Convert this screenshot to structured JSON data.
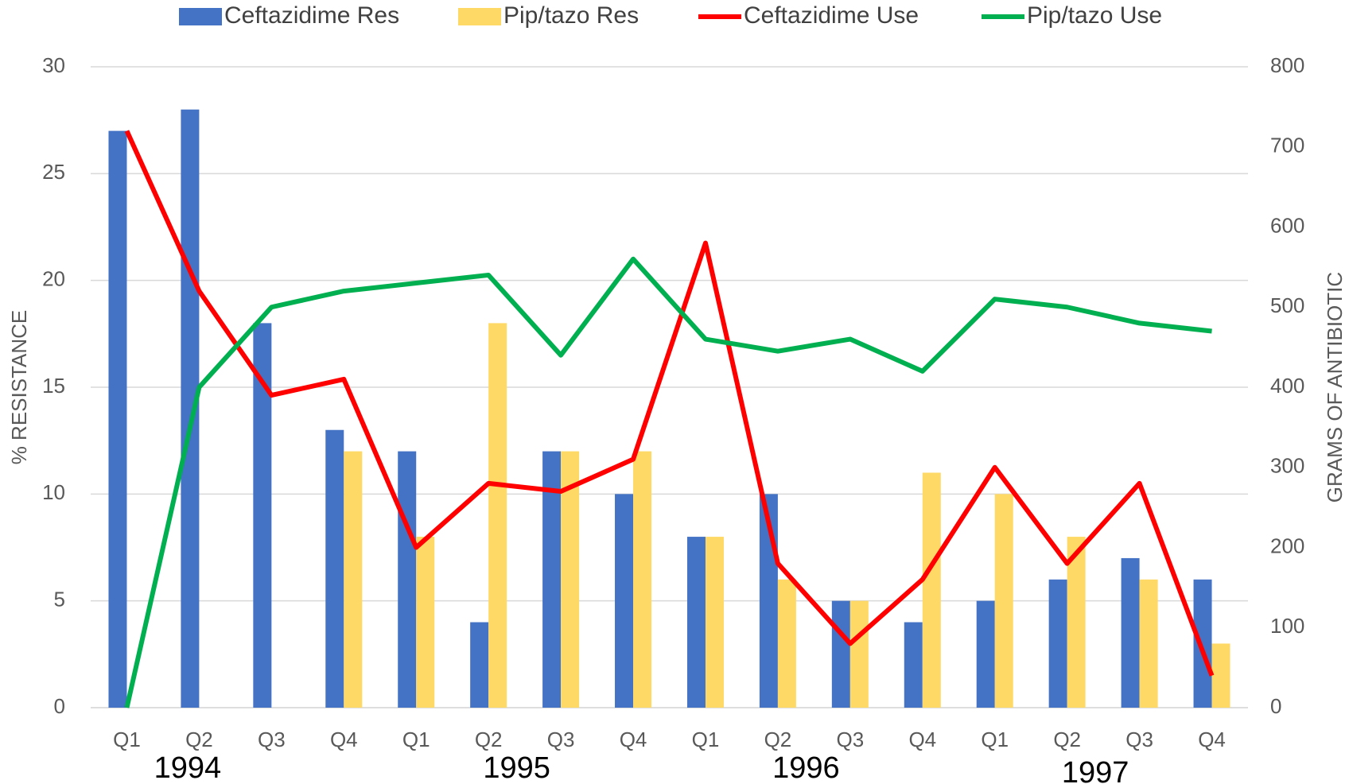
{
  "chart_data": {
    "type": "bar_line",
    "categories": [
      "Q1",
      "Q2",
      "Q3",
      "Q4",
      "Q1",
      "Q2",
      "Q3",
      "Q4",
      "Q1",
      "Q2",
      "Q3",
      "Q4",
      "Q1",
      "Q2",
      "Q3",
      "Q4"
    ],
    "years": [
      "1994",
      "1995",
      "1996",
      "1997"
    ],
    "y_label": "% RESISTANCE",
    "y2_label": "GRAMS OF ANTIBIOTIC",
    "ylim": [
      0,
      30
    ],
    "yticks": [
      0,
      5,
      10,
      15,
      20,
      25,
      30
    ],
    "y2lim": [
      0,
      800
    ],
    "y2ticks": [
      0,
      100,
      200,
      300,
      400,
      500,
      600,
      700,
      800
    ],
    "grid": true,
    "series": [
      {
        "name": "Ceftazidime Res",
        "type": "bar",
        "color": "#4472c4",
        "values": [
          27,
          28,
          18,
          13,
          12,
          4,
          12,
          10,
          8,
          10,
          5,
          4,
          5,
          6,
          7,
          6
        ]
      },
      {
        "name": "Pip/tazo Res",
        "type": "bar",
        "color": "#ffd966",
        "values": [
          null,
          null,
          null,
          12,
          8,
          18,
          12,
          12,
          8,
          6,
          5,
          11,
          10,
          8,
          6,
          3
        ]
      },
      {
        "name": "Ceftazidime Use",
        "type": "line",
        "axis": "y2",
        "color": "#ff0000",
        "values": [
          720,
          520,
          390,
          410,
          200,
          280,
          270,
          310,
          580,
          180,
          80,
          160,
          300,
          180,
          280,
          40
        ]
      },
      {
        "name": "Pip/tazo Use",
        "type": "line",
        "axis": "y2",
        "color": "#00b050",
        "values": [
          0,
          400,
          500,
          520,
          530,
          540,
          440,
          560,
          460,
          445,
          460,
          420,
          510,
          500,
          480,
          470
        ]
      }
    ]
  }
}
